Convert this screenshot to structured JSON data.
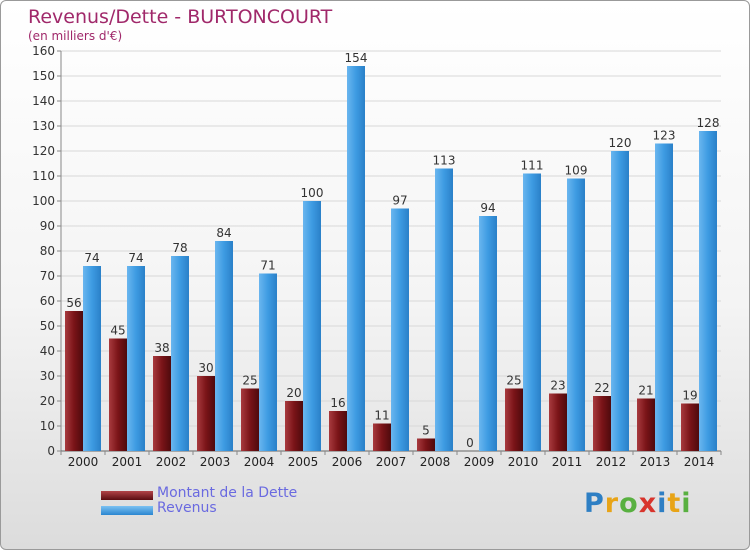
{
  "title": "Revenus/Dette - BURTONCOURT",
  "subtitle": "(en milliers d'€)",
  "logo_text": "Proxiti",
  "colors": {
    "title": "#a0286a",
    "dette": "#7a1418",
    "revenus": "#3d9be2",
    "legend_text": "#6a6ae0"
  },
  "chart_data": {
    "type": "bar",
    "title": "Revenus/Dette - BURTONCOURT",
    "subtitle": "(en milliers d'€)",
    "categories": [
      "2000",
      "2001",
      "2002",
      "2003",
      "2004",
      "2005",
      "2006",
      "2007",
      "2008",
      "2009",
      "2010",
      "2011",
      "2012",
      "2013",
      "2014"
    ],
    "series": [
      {
        "name": "Montant de la Dette",
        "values": [
          56,
          45,
          38,
          30,
          25,
          20,
          16,
          11,
          5,
          0,
          25,
          23,
          22,
          21,
          19
        ]
      },
      {
        "name": "Revenus",
        "values": [
          74,
          74,
          78,
          84,
          71,
          100,
          154,
          97,
          113,
          94,
          111,
          109,
          120,
          123,
          128
        ]
      }
    ],
    "ylim": [
      0,
      160
    ],
    "yticks": [
      0,
      10,
      20,
      30,
      40,
      50,
      60,
      70,
      80,
      90,
      100,
      110,
      120,
      130,
      140,
      150,
      160
    ],
    "grid": true,
    "legend_position": "bottom-left"
  }
}
